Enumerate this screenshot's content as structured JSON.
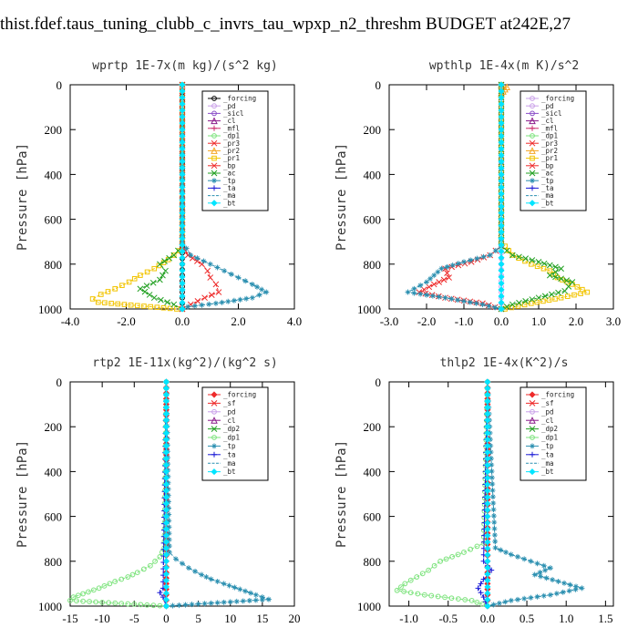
{
  "page_title": "thist.fdef.taus_tuning_clubb_c_invrs_tau_wpxp_n2_threshm  BUDGET at242E,27",
  "chart_data": [
    {
      "type": "line",
      "title": "wprtp  1E-7x(m kg)/(s^2 kg)",
      "ylabel": "Pressure [hPa]",
      "xlim": [
        -4,
        4
      ],
      "ylim": [
        1000,
        0
      ],
      "xticks": [
        -4,
        -2,
        0,
        2,
        4
      ],
      "xtick_labels": [
        "-4.0",
        "-2.0",
        "0.0",
        "2.0",
        "4.0"
      ],
      "yticks": [
        0,
        200,
        400,
        600,
        800,
        1000
      ],
      "ytick_labels": [
        "0",
        "200",
        "400",
        "600",
        "800",
        "1000"
      ],
      "legend_position": "top-right",
      "legend": [
        "_forcing",
        "_pd",
        "_sicl",
        "_cl",
        "_mfl",
        "_dp1",
        "_pr3",
        "_pr2",
        "_pr1",
        "_bp",
        "_ac",
        "_tp",
        "_ta",
        "_ma",
        "_bt"
      ],
      "series": [
        {
          "name": "_forcing",
          "color": "#000000",
          "marker": "circle",
          "x": [
            0,
            0,
            0,
            0,
            0,
            0,
            0,
            0,
            0,
            0,
            0
          ],
          "y": [
            0,
            100,
            200,
            300,
            400,
            500,
            600,
            700,
            800,
            900,
            1000
          ]
        },
        {
          "name": "_pr1",
          "color": "#f2c400",
          "marker": "square",
          "x": [
            0,
            0,
            -0.1,
            -0.5,
            -1.0,
            -1.5,
            -1.9,
            -2.4,
            -2.9,
            -3.2,
            -3.0,
            -0.2
          ],
          "y": [
            0,
            700,
            740,
            780,
            820,
            850,
            880,
            910,
            935,
            955,
            970,
            1000
          ]
        },
        {
          "name": "_ac",
          "color": "#22a022",
          "marker": "x",
          "x": [
            0,
            0,
            -0.3,
            -0.8,
            -0.6,
            -0.8,
            -1.5,
            -1.0,
            -0.3,
            0
          ],
          "y": [
            0,
            720,
            760,
            800,
            830,
            870,
            910,
            950,
            980,
            1000
          ]
        },
        {
          "name": "_bp",
          "color": "#ee2a2a",
          "marker": "x",
          "x": [
            0,
            0,
            0.2,
            0.7,
            0.9,
            1.0,
            1.2,
            1.3,
            0.8,
            0.3,
            0
          ],
          "y": [
            0,
            720,
            760,
            800,
            830,
            860,
            890,
            925,
            950,
            980,
            1000
          ]
        },
        {
          "name": "_tp",
          "color": "#2a8fb0",
          "marker": "star",
          "x": [
            0,
            0,
            0.3,
            1.0,
            1.5,
            2.0,
            2.5,
            3.0,
            2.5,
            1.2,
            0.2,
            0
          ],
          "y": [
            0,
            700,
            760,
            800,
            830,
            860,
            890,
            925,
            950,
            975,
            990,
            1000
          ]
        },
        {
          "name": "_bt",
          "color": "#00e5ff",
          "marker": "diamond",
          "x": [
            0,
            0
          ],
          "y": [
            0,
            1000
          ]
        }
      ]
    },
    {
      "type": "line",
      "title": "wpthlp  1E-4x(m K)/s^2",
      "ylabel": "Pressure [hPa]",
      "xlim": [
        -3,
        3
      ],
      "ylim": [
        1000,
        0
      ],
      "xticks": [
        -3,
        -2,
        -1,
        0,
        1,
        2,
        3
      ],
      "xtick_labels": [
        "-3.0",
        "-2.0",
        "-1.0",
        "0.0",
        "1.0",
        "2.0",
        "3.0"
      ],
      "yticks": [
        0,
        200,
        400,
        600,
        800,
        1000
      ],
      "ytick_labels": [
        "0",
        "200",
        "400",
        "600",
        "800",
        "1000"
      ],
      "legend_position": "top-right",
      "legend": [
        "_forcing",
        "_pd",
        "_sicl",
        "_cl",
        "_mfl",
        "_dp1",
        "_pr3",
        "_pr2",
        "_pr1",
        "_bp",
        "_ac",
        "_tp",
        "_ta",
        "_ma",
        "_bt"
      ],
      "series": [
        {
          "name": "_forcing",
          "color": "#c9a0e8",
          "marker": "circle",
          "x": [
            0,
            0,
            0,
            0,
            0,
            0,
            0,
            0,
            0,
            0,
            0
          ],
          "y": [
            0,
            100,
            200,
            300,
            400,
            500,
            600,
            700,
            800,
            900,
            1000
          ]
        },
        {
          "name": "_pr2",
          "color": "#f5a623",
          "marker": "triangle",
          "x": [
            0,
            0.15,
            0.1,
            0.05,
            0
          ],
          "y": [
            0,
            10,
            20,
            30,
            40
          ]
        },
        {
          "name": "_pr1",
          "color": "#f2c400",
          "marker": "square",
          "x": [
            0,
            0,
            0.3,
            0.8,
            1.3,
            1.5,
            1.9,
            2.3,
            1.6,
            0.8,
            0.1
          ],
          "y": [
            0,
            700,
            760,
            800,
            830,
            860,
            890,
            925,
            950,
            975,
            1000
          ]
        },
        {
          "name": "_bp",
          "color": "#ee2a2a",
          "marker": "x",
          "x": [
            0,
            0,
            -0.3,
            -0.8,
            -1.5,
            -1.4,
            -1.8,
            -2.2,
            -1.5,
            -0.5,
            0
          ],
          "y": [
            0,
            720,
            760,
            790,
            820,
            860,
            890,
            925,
            950,
            975,
            1000
          ]
        },
        {
          "name": "_ac",
          "color": "#22a022",
          "marker": "x",
          "x": [
            0,
            0,
            0.3,
            1.0,
            1.6,
            1.3,
            1.9,
            1.7,
            1.0,
            0.3,
            0
          ],
          "y": [
            0,
            720,
            760,
            790,
            820,
            850,
            880,
            920,
            950,
            980,
            1000
          ]
        },
        {
          "name": "_tp",
          "color": "#2a8fb0",
          "marker": "star",
          "x": [
            0,
            0,
            -0.3,
            -1.0,
            -1.6,
            -1.8,
            -2.0,
            -2.5,
            -1.5,
            -0.5,
            0
          ],
          "y": [
            0,
            720,
            760,
            790,
            820,
            850,
            880,
            925,
            950,
            980,
            1000
          ]
        },
        {
          "name": "_bt",
          "color": "#00e5ff",
          "marker": "diamond",
          "x": [
            0,
            0
          ],
          "y": [
            0,
            1000
          ]
        }
      ]
    },
    {
      "type": "line",
      "title": "rtp2  1E-11x(kg^2)/(kg^2 s)",
      "ylabel": "Pressure [hPa]",
      "xlim": [
        -15,
        20
      ],
      "ylim": [
        1000,
        0
      ],
      "xticks": [
        -15,
        -10,
        -5,
        0,
        5,
        10,
        15,
        20
      ],
      "xtick_labels": [
        "-15",
        "-10",
        "-5",
        "0",
        "5",
        "10",
        "15",
        "20"
      ],
      "yticks": [
        0,
        200,
        400,
        600,
        800,
        1000
      ],
      "ytick_labels": [
        "0",
        "200",
        "400",
        "600",
        "800",
        "1000"
      ],
      "legend_position": "top-right",
      "legend": [
        "_forcing",
        "_sf",
        "_pd",
        "_cl",
        "_dp2",
        "_dp1",
        "_tp",
        "_ta",
        "_ma",
        "_bt"
      ],
      "series": [
        {
          "name": "_forcing",
          "color": "#ee2a2a",
          "marker": "diamond",
          "x": [
            0,
            0,
            0,
            0,
            0,
            0,
            0,
            0,
            0,
            0,
            0
          ],
          "y": [
            0,
            100,
            200,
            300,
            400,
            500,
            600,
            700,
            800,
            900,
            1000
          ]
        },
        {
          "name": "_dp1",
          "color": "#7de37d",
          "marker": "circle",
          "x": [
            0,
            -0.3,
            -1.0,
            -2.5,
            -4.5,
            -6.0,
            -8.0,
            -10.5,
            -13.0,
            -14.5,
            -15.0,
            0
          ],
          "y": [
            0,
            740,
            780,
            820,
            850,
            870,
            890,
            920,
            945,
            960,
            975,
            1000
          ]
        },
        {
          "name": "_tp",
          "color": "#2a8fb0",
          "marker": "star",
          "x": [
            0,
            0.5,
            1.5,
            3.5,
            5.5,
            7.0,
            9.0,
            11.5,
            14.0,
            16.0,
            0
          ],
          "y": [
            0,
            760,
            790,
            830,
            860,
            880,
            900,
            925,
            950,
            970,
            1000
          ]
        },
        {
          "name": "_ta",
          "color": "#1a1ad6",
          "marker": "plus",
          "x": [
            0,
            -0.5,
            -1.0,
            -0.5,
            0
          ],
          "y": [
            0,
            920,
            940,
            960,
            1000
          ]
        },
        {
          "name": "_bt",
          "color": "#00e5ff",
          "marker": "diamond",
          "x": [
            0,
            0
          ],
          "y": [
            0,
            1000
          ]
        }
      ]
    },
    {
      "type": "line",
      "title": "thlp2  1E-4x(K^2)/s",
      "ylabel": "Pressure [hPa]",
      "xlim": [
        -1.25,
        1.6
      ],
      "ylim": [
        1000,
        0
      ],
      "xticks": [
        -1.0,
        -0.5,
        0.0,
        0.5,
        1.0,
        1.5
      ],
      "xtick_labels": [
        "-1.0",
        "-0.5",
        "0.0",
        "0.5",
        "1.0",
        "1.5"
      ],
      "yticks": [
        0,
        200,
        400,
        600,
        800,
        1000
      ],
      "ytick_labels": [
        "0",
        "200",
        "400",
        "600",
        "800",
        "1000"
      ],
      "legend_position": "top-right",
      "legend": [
        "_forcing",
        "_sf",
        "_pd",
        "_cl",
        "_dp2",
        "_dp1",
        "_tp",
        "_ta",
        "_ma",
        "_bt"
      ],
      "series": [
        {
          "name": "_forcing",
          "color": "#ee2a2a",
          "marker": "diamond",
          "x": [
            0,
            0,
            0,
            0,
            0,
            0,
            0,
            0,
            0,
            0,
            0
          ],
          "y": [
            0,
            100,
            200,
            300,
            400,
            500,
            600,
            700,
            800,
            900,
            1000
          ]
        },
        {
          "name": "_dp1",
          "color": "#7de37d",
          "marker": "circle",
          "x": [
            0,
            -0.05,
            -0.3,
            -0.6,
            -0.75,
            -0.9,
            -1.05,
            -1.15,
            -0.8,
            -0.2,
            0
          ],
          "y": [
            0,
            720,
            760,
            800,
            840,
            870,
            900,
            930,
            950,
            975,
            1000
          ]
        },
        {
          "name": "_tp",
          "color": "#2a8fb0",
          "marker": "star",
          "x": [
            0,
            0.1,
            0.3,
            0.55,
            0.8,
            0.6,
            0.9,
            1.2,
            0.8,
            0.3,
            0
          ],
          "y": [
            0,
            740,
            770,
            800,
            830,
            860,
            890,
            920,
            950,
            975,
            1000
          ]
        },
        {
          "name": "_ta",
          "color": "#1a1ad6",
          "marker": "plus",
          "x": [
            0,
            -0.05,
            0.05,
            -0.05,
            -0.12,
            -0.05,
            0
          ],
          "y": [
            0,
            800,
            840,
            880,
            920,
            960,
            1000
          ]
        },
        {
          "name": "_bt",
          "color": "#00e5ff",
          "marker": "diamond",
          "x": [
            0,
            0
          ],
          "y": [
            0,
            1000
          ]
        }
      ]
    }
  ],
  "legend_style": {
    "_forcing": {
      "color": "#ee2a2a",
      "marker": "diamond"
    },
    "_sf": {
      "color": "#ee2a2a",
      "marker": "x"
    },
    "_pd": {
      "color": "#c9a0e8",
      "marker": "circle"
    },
    "_sicl": {
      "color": "#8a4fc8",
      "marker": "circle"
    },
    "_cl": {
      "color": "#8a1a8a",
      "marker": "triangle"
    },
    "_mfl": {
      "color": "#cc2a6a",
      "marker": "plus"
    },
    "_dp2": {
      "color": "#22a022",
      "marker": "x"
    },
    "_dp1": {
      "color": "#7de37d",
      "marker": "circle"
    },
    "_pr3": {
      "color": "#ee2a2a",
      "marker": "x"
    },
    "_pr2": {
      "color": "#f5a623",
      "marker": "triangle"
    },
    "_pr1": {
      "color": "#f2c400",
      "marker": "square"
    },
    "_bp": {
      "color": "#22a022",
      "marker": "x"
    },
    "_ac": {
      "color": "#7de37d",
      "marker": "circle"
    },
    "_tp": {
      "color": "#2a8fb0",
      "marker": "star"
    },
    "_ta": {
      "color": "#1a1ad6",
      "marker": "plus"
    },
    "_ma": {
      "color": "#2a8fb0",
      "marker": "none"
    },
    "_bt": {
      "color": "#00e5ff",
      "marker": "diamond"
    }
  }
}
